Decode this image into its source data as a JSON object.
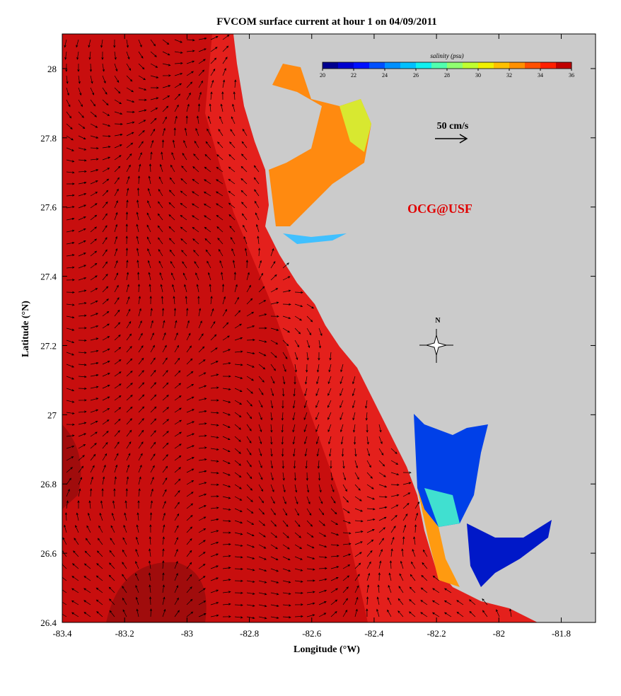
{
  "chart_data": {
    "type": "map",
    "title": "FVCOM surface current at hour 1 on 04/09/2011",
    "x_label": "Longitude (°W)",
    "y_label": "Latitude (°N)",
    "xlim": [
      -83.4,
      -81.69
    ],
    "ylim": [
      26.4,
      28.1
    ],
    "xticks": [
      -83.4,
      -83.2,
      -83,
      -82.8,
      -82.6,
      -82.4,
      -82.2,
      -82,
      -81.8
    ],
    "yticks": [
      26.4,
      26.6,
      26.8,
      27,
      27.2,
      27.4,
      27.6,
      27.8,
      28
    ],
    "colorbar": {
      "label": "salinity (psu)",
      "range": [
        20,
        36
      ],
      "ticks": [
        20,
        22,
        24,
        26,
        28,
        30,
        32,
        34,
        36
      ],
      "colors": [
        "#00008f",
        "#0000cf",
        "#0010ff",
        "#0050ff",
        "#0090ff",
        "#00c0ff",
        "#10f0ef",
        "#50ffaf",
        "#90ff70",
        "#c0ff30",
        "#f0f000",
        "#ffc000",
        "#ff9000",
        "#ff5000",
        "#ff2000",
        "#c00000"
      ]
    },
    "scale_label": "50 cm/s",
    "credit": "OCG@USF",
    "compass_label": "N"
  }
}
